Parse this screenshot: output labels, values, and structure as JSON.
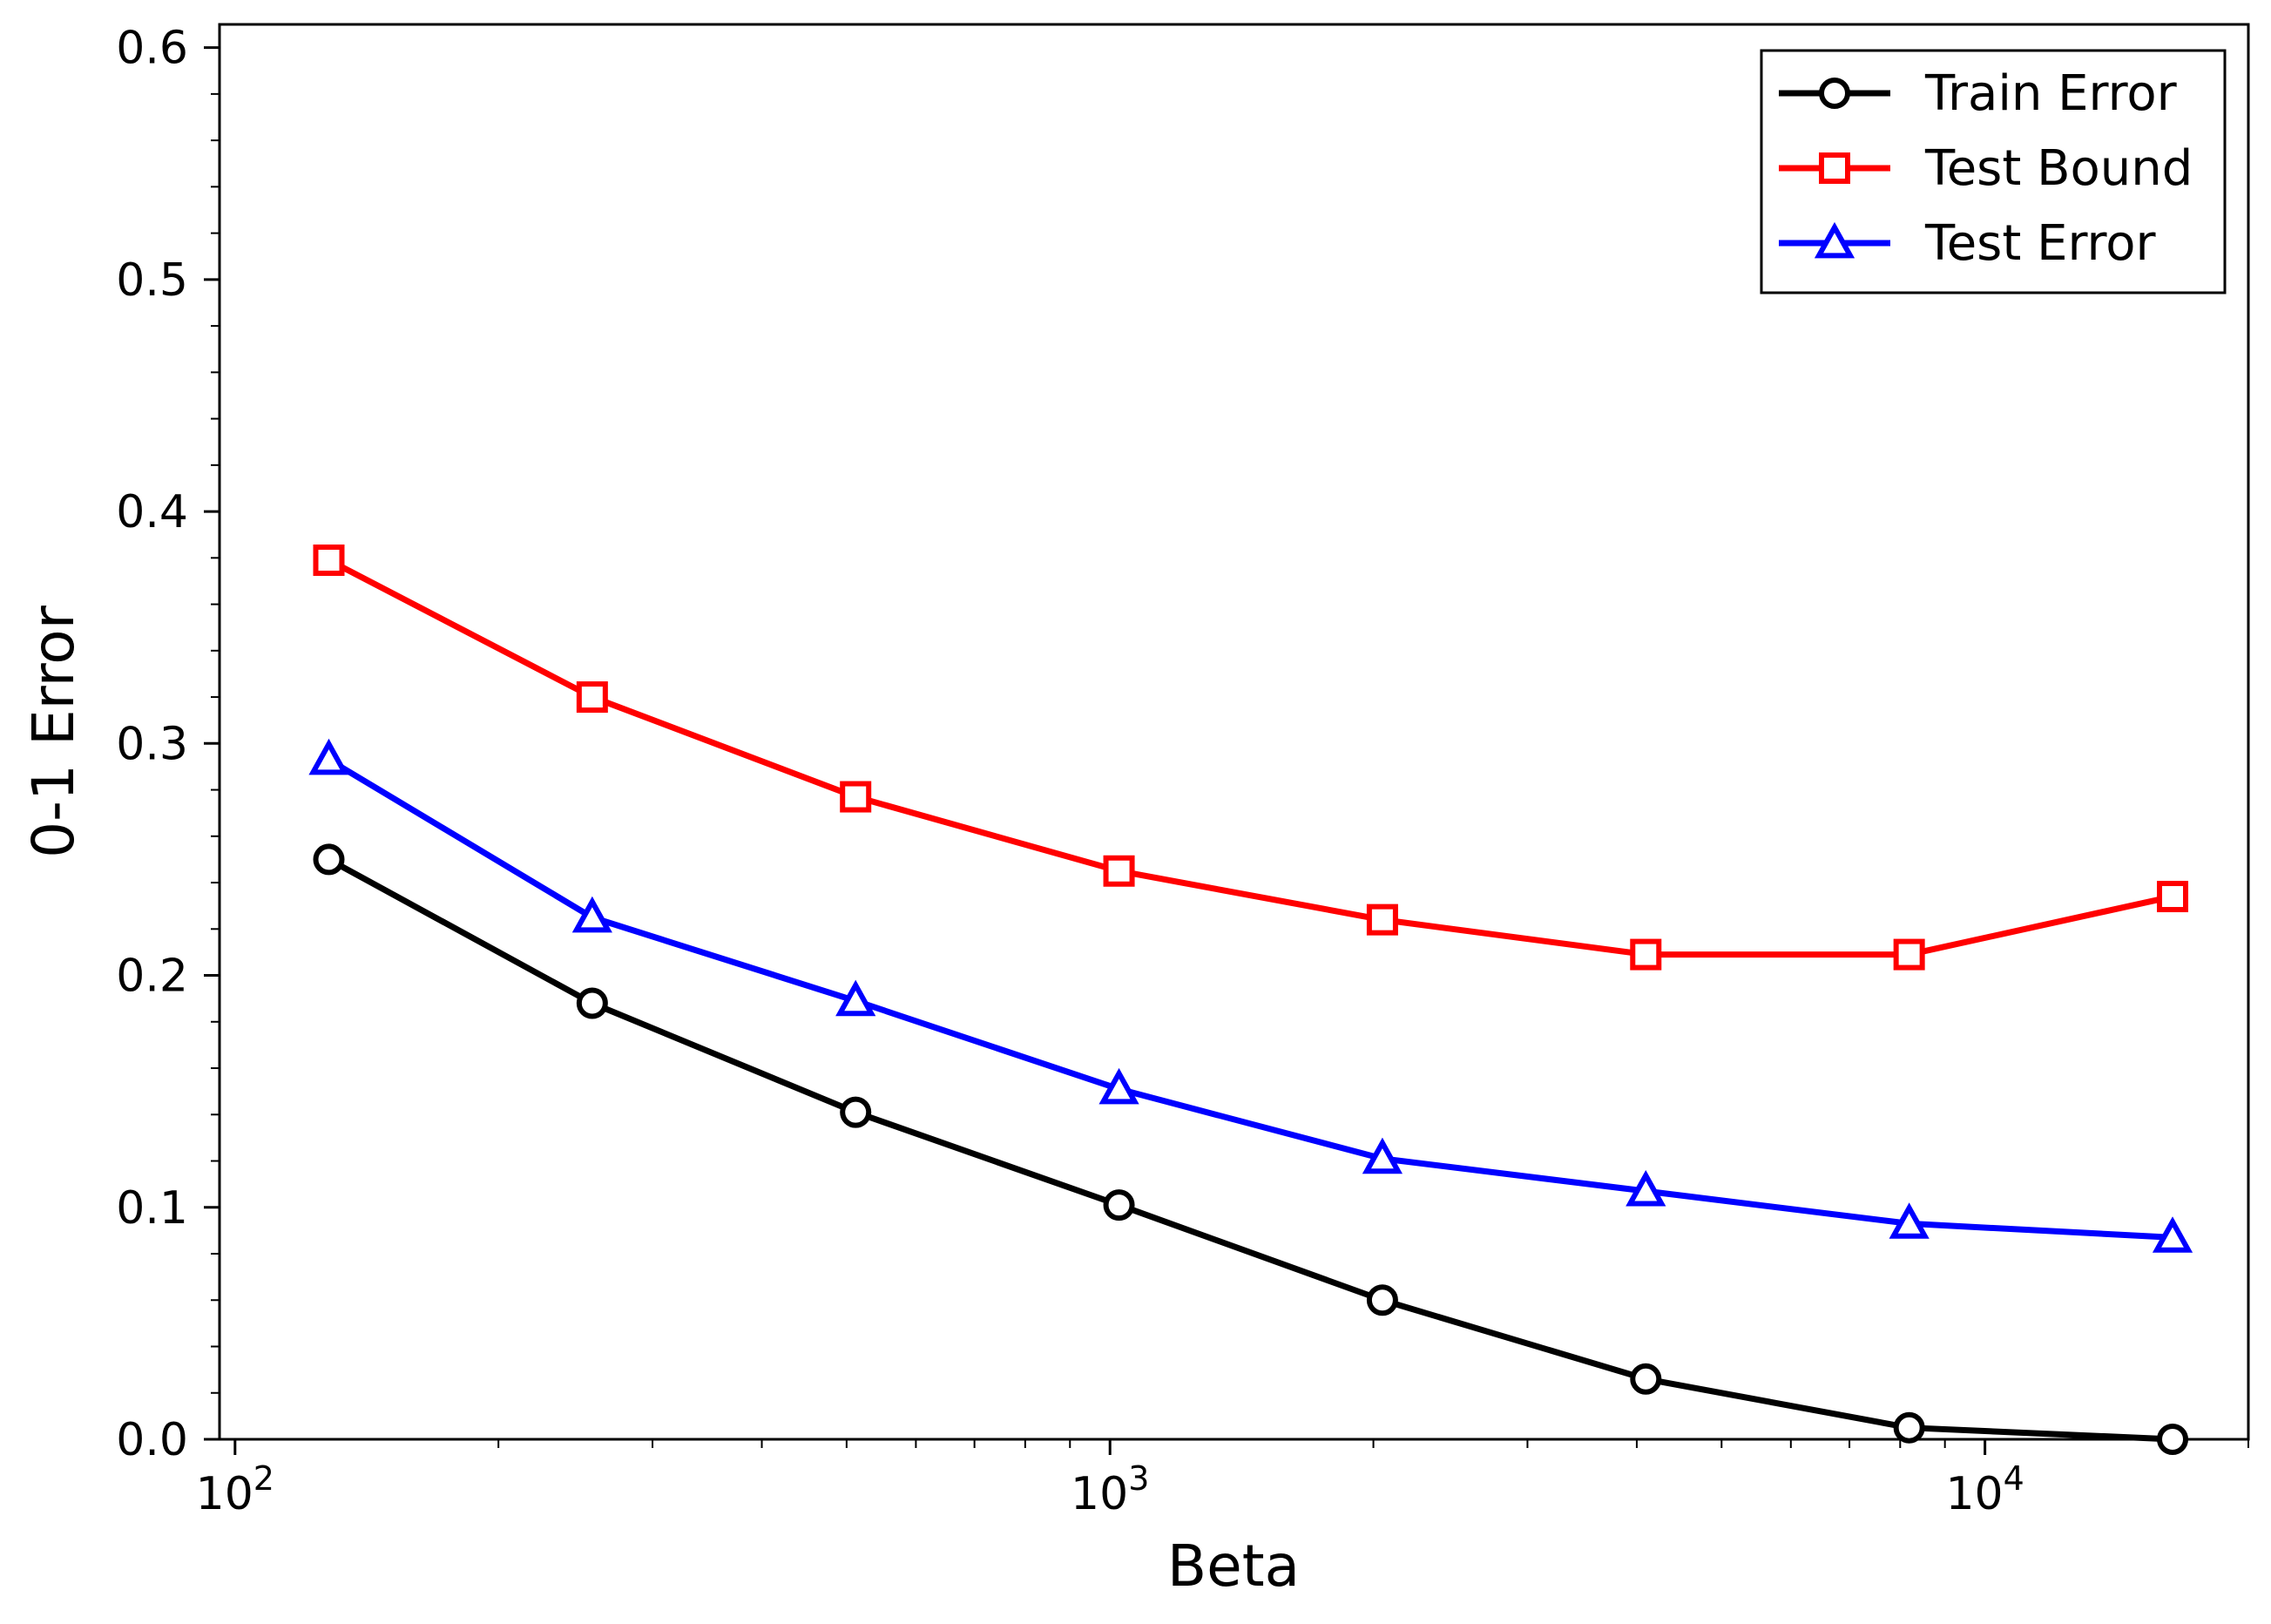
{
  "chart_data": {
    "type": "line",
    "title": "",
    "xlabel": "Beta",
    "ylabel": "0-1 Error",
    "xscale": "log",
    "xlim": [
      96,
      20000
    ],
    "ylim": [
      0.0,
      0.61
    ],
    "grid": false,
    "legend_position": "top-right",
    "x": [
      128,
      256,
      512,
      1024,
      2048,
      4096,
      8192,
      16384
    ],
    "x_ticks": [
      {
        "value": 100,
        "base": "10",
        "exp": "2"
      },
      {
        "value": 1000,
        "base": "10",
        "exp": "3"
      },
      {
        "value": 10000,
        "base": "10",
        "exp": "4"
      }
    ],
    "y_ticks": [
      {
        "value": 0.0,
        "label": "0.0"
      },
      {
        "value": 0.1,
        "label": "0.1"
      },
      {
        "value": 0.2,
        "label": "0.2"
      },
      {
        "value": 0.3,
        "label": "0.3"
      },
      {
        "value": 0.4,
        "label": "0.4"
      },
      {
        "value": 0.5,
        "label": "0.5"
      },
      {
        "value": 0.6,
        "label": "0.6"
      }
    ],
    "series": [
      {
        "name": "Train Error",
        "color": "#000000",
        "marker": "circle",
        "values": [
          0.25,
          0.188,
          0.141,
          0.101,
          0.06,
          0.026,
          0.005,
          0.0
        ]
      },
      {
        "name": "Test Bound",
        "color": "#ff0000",
        "marker": "square",
        "values": [
          0.379,
          0.32,
          0.277,
          0.245,
          0.224,
          0.209,
          0.209,
          0.234
        ]
      },
      {
        "name": "Test Error",
        "color": "#0000ff",
        "marker": "triangle",
        "values": [
          0.293,
          0.225,
          0.189,
          0.151,
          0.121,
          0.107,
          0.093,
          0.087
        ]
      }
    ]
  }
}
